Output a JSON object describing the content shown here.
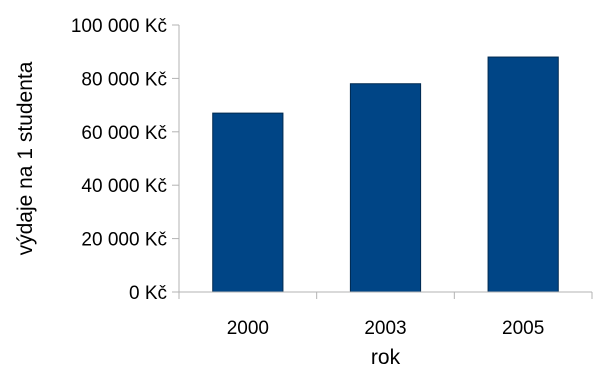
{
  "chart_data": {
    "type": "bar",
    "categories": [
      "2000",
      "2003",
      "2005"
    ],
    "values": [
      67000,
      78000,
      88000
    ],
    "xlabel": "rok",
    "ylabel": "výdaje na 1 studenta",
    "ylim": [
      0,
      100000
    ],
    "y_ticks": [
      {
        "value": 0,
        "label": "0 Kč"
      },
      {
        "value": 20000,
        "label": "20 000 Kč"
      },
      {
        "value": 40000,
        "label": "40 000 Kč"
      },
      {
        "value": 60000,
        "label": "60 000 Kč"
      },
      {
        "value": 80000,
        "label": "80 000 Kč"
      },
      {
        "value": 100000,
        "label": "100 000 Kč"
      }
    ],
    "grid": false,
    "bar_color": "#004586"
  }
}
